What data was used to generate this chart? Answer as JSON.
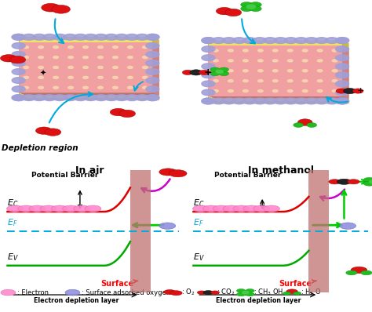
{
  "bg_color": "#ffffff",
  "depletion_region_text": "Depletion region",
  "in_air_title": "In air",
  "in_methanol_title": "In methanol",
  "potential_barrier_text": "Potential Barrier",
  "surface_label": "Surface",
  "electron_depletion_label": "Electron depletion layer",
  "legend_electron": ": Electron",
  "legend_surface_o2": ": Surface adsorbed oxygen",
  "legend_o2": ": O$_2$",
  "legend_co2": ": CO$_2$",
  "legend_ch3oh": ": CH$_3$ OH",
  "legend_h2o": ": H$_2$ O",
  "slab_pink": "#f0a0a0",
  "slab_yellow": "#f5e060",
  "slab_border": "#a0a0d8",
  "surface_rect_color": "#c07070",
  "ec_color": "#dd0000",
  "ef_color": "#00aadd",
  "ev_color": "#00aa00",
  "electron_pink": "#ff88cc",
  "adsorbed_blue": "#9090dd",
  "arrow_blue": "#00aadd",
  "arrow_green": "#00cc00",
  "arrow_purple": "#cc00cc"
}
